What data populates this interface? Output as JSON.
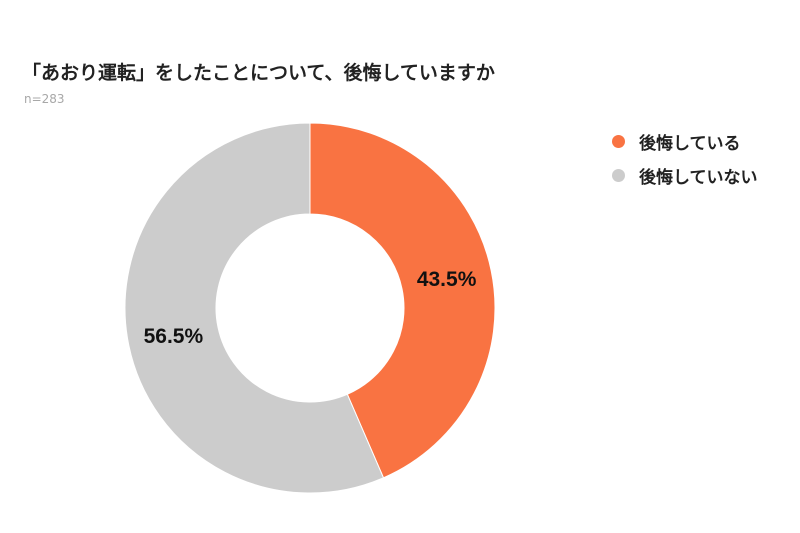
{
  "chart_data": {
    "type": "pie",
    "title": "「あおり運転」をしたことについて、後悔していますか",
    "subtitle": "n=283",
    "donut": true,
    "start_angle_deg": 0,
    "direction": "clockwise",
    "slices": [
      {
        "label": "後悔している",
        "value": 43.5,
        "display": "43.5%",
        "color": "#F97342"
      },
      {
        "label": "後悔していない",
        "value": 56.5,
        "display": "56.5%",
        "color": "#CCCCCC"
      }
    ],
    "legend": {
      "placement": "right"
    }
  }
}
